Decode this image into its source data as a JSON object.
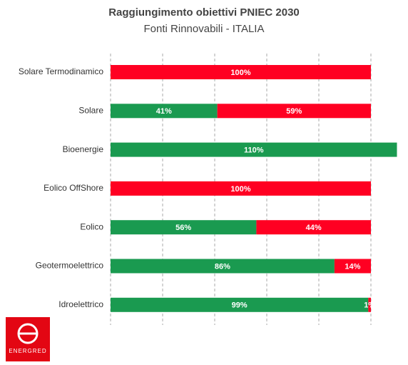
{
  "chart_data": {
    "type": "stacked-barh",
    "title": "Raggiungimento obiettivi PNIEC 2030",
    "subtitle": "Fonti Rinnovabili - ITALIA",
    "categories": [
      "Solare Termodinamico",
      "Solare",
      "Bioenergie",
      "Eolico OffShore",
      "Eolico",
      "Geotermoelettrico",
      "Idroelettrico"
    ],
    "series": [
      {
        "color": "#1a9a50",
        "values": [
          null,
          41,
          110,
          null,
          56,
          86,
          99
        ],
        "value_labels": [
          null,
          "41%",
          "110%",
          null,
          "56%",
          "86%",
          "99%"
        ]
      },
      {
        "color": "#ff0022",
        "values": [
          100,
          59,
          null,
          100,
          44,
          14,
          1
        ],
        "value_labels": [
          "100%",
          "59%",
          null,
          "100%",
          "44%",
          "14%",
          "1%"
        ]
      }
    ],
    "xlim": [
      0,
      110
    ],
    "xticks": [
      0,
      20,
      40,
      60,
      80,
      100
    ],
    "grid": true
  },
  "logo": {
    "text": "ENERGRED"
  }
}
